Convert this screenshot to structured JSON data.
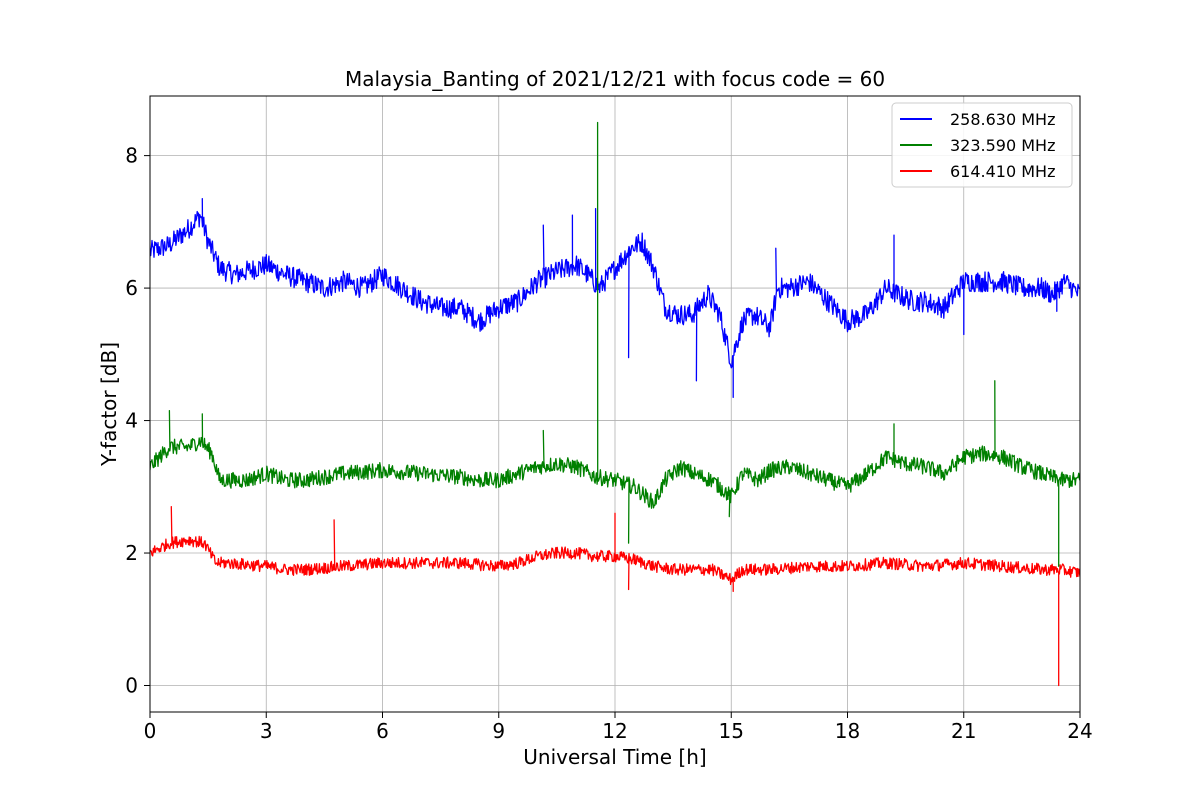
{
  "chart_data": {
    "type": "line",
    "title": "Malaysia_Banting of 2021/12/21 with focus code = 60",
    "xlabel": "Universal Time [h]",
    "ylabel": "Y-factor [dB]",
    "xlim": [
      0,
      24
    ],
    "ylim": [
      -0.4,
      8.9
    ],
    "xticks": [
      0,
      3,
      6,
      9,
      12,
      15,
      18,
      21,
      24
    ],
    "xtick_labels": [
      "0",
      "3",
      "6",
      "9",
      "12",
      "15",
      "18",
      "21",
      "24"
    ],
    "yticks": [
      0,
      2,
      4,
      6,
      8
    ],
    "ytick_labels": [
      "0",
      "2",
      "4",
      "6",
      "8"
    ],
    "grid": true,
    "legend_position": "top-right",
    "series": [
      {
        "name": "258.630 MHz",
        "color": "#0000ff",
        "noise": 0.16,
        "x": [
          0,
          0.5,
          1.0,
          1.3,
          1.5,
          1.8,
          2.2,
          3.0,
          3.5,
          4.0,
          4.5,
          5.0,
          5.5,
          6.0,
          6.5,
          7.0,
          7.5,
          8.0,
          8.5,
          9.0,
          9.5,
          10.0,
          10.5,
          11.0,
          11.3,
          11.6,
          12.0,
          12.4,
          12.7,
          13.0,
          13.3,
          13.6,
          14.0,
          14.4,
          14.7,
          15.0,
          15.3,
          15.6,
          16.0,
          16.2,
          16.5,
          17.0,
          17.5,
          18.0,
          18.5,
          19.0,
          19.3,
          19.7,
          20.0,
          20.5,
          21.0,
          21.5,
          22.0,
          22.5,
          23.0,
          23.3,
          23.6,
          24.0
        ],
        "y": [
          6.55,
          6.65,
          6.9,
          7.1,
          6.7,
          6.3,
          6.2,
          6.35,
          6.2,
          6.1,
          6.0,
          6.1,
          6.0,
          6.2,
          6.0,
          5.8,
          5.7,
          5.7,
          5.5,
          5.7,
          5.8,
          6.1,
          6.25,
          6.35,
          6.2,
          6.0,
          6.3,
          6.6,
          6.7,
          6.3,
          5.7,
          5.6,
          5.6,
          5.9,
          5.6,
          4.9,
          5.5,
          5.6,
          5.4,
          6.0,
          6.0,
          6.1,
          5.8,
          5.5,
          5.6,
          6.0,
          5.9,
          5.8,
          5.8,
          5.7,
          6.1,
          6.1,
          6.1,
          6.0,
          6.0,
          5.9,
          6.1,
          5.9
        ],
        "spikes": [
          [
            1.35,
            7.35
          ],
          [
            10.15,
            6.95
          ],
          [
            10.9,
            7.1
          ],
          [
            11.5,
            7.2
          ],
          [
            12.35,
            4.95
          ],
          [
            14.1,
            4.6
          ],
          [
            15.05,
            4.35
          ],
          [
            16.15,
            6.6
          ],
          [
            19.2,
            6.8
          ],
          [
            21.0,
            5.3
          ],
          [
            23.4,
            5.65
          ]
        ]
      },
      {
        "name": "323.590 MHz",
        "color": "#008000",
        "noise": 0.12,
        "x": [
          0,
          0.5,
          1.0,
          1.3,
          1.6,
          1.8,
          2.5,
          3.0,
          3.5,
          4.0,
          5.0,
          6.0,
          7.0,
          8.0,
          8.5,
          9.0,
          9.5,
          10.0,
          10.5,
          11.0,
          11.5,
          12.0,
          12.5,
          13.0,
          13.3,
          13.7,
          14.0,
          14.5,
          15.0,
          15.3,
          15.7,
          16.0,
          16.5,
          17.0,
          17.5,
          18.0,
          18.5,
          19.0,
          19.5,
          20.0,
          20.5,
          21.0,
          21.5,
          22.0,
          22.5,
          23.0,
          23.5,
          24.0
        ],
        "y": [
          3.3,
          3.6,
          3.6,
          3.7,
          3.5,
          3.1,
          3.1,
          3.2,
          3.1,
          3.1,
          3.2,
          3.25,
          3.2,
          3.15,
          3.1,
          3.1,
          3.2,
          3.3,
          3.35,
          3.3,
          3.15,
          3.1,
          3.0,
          2.75,
          3.1,
          3.3,
          3.2,
          3.1,
          2.85,
          3.2,
          3.1,
          3.25,
          3.3,
          3.2,
          3.1,
          3.0,
          3.2,
          3.45,
          3.35,
          3.3,
          3.2,
          3.45,
          3.5,
          3.45,
          3.3,
          3.2,
          3.1,
          3.1
        ],
        "spikes": [
          [
            0.5,
            4.15
          ],
          [
            1.35,
            4.1
          ],
          [
            10.15,
            3.85
          ],
          [
            11.55,
            8.5
          ],
          [
            12.35,
            2.15
          ],
          [
            14.95,
            2.55
          ],
          [
            19.2,
            3.95
          ],
          [
            21.8,
            4.6
          ],
          [
            23.45,
            1.8
          ]
        ]
      },
      {
        "name": "614.410 MHz",
        "color": "#ff0000",
        "noise": 0.09,
        "x": [
          0,
          0.5,
          1.0,
          1.4,
          1.7,
          2.0,
          3.0,
          3.5,
          4.0,
          5.0,
          6.0,
          7.0,
          8.0,
          9.0,
          9.5,
          10.0,
          10.5,
          11.0,
          11.5,
          12.0,
          12.5,
          13.0,
          13.5,
          14.0,
          14.5,
          15.0,
          15.3,
          16.0,
          17.0,
          18.0,
          19.0,
          20.0,
          21.0,
          22.0,
          23.0,
          23.5,
          24.0
        ],
        "y": [
          2.0,
          2.15,
          2.2,
          2.15,
          1.85,
          1.85,
          1.8,
          1.75,
          1.75,
          1.8,
          1.85,
          1.85,
          1.85,
          1.8,
          1.85,
          1.95,
          2.0,
          2.0,
          1.95,
          1.95,
          1.9,
          1.8,
          1.75,
          1.75,
          1.75,
          1.6,
          1.75,
          1.75,
          1.8,
          1.8,
          1.85,
          1.8,
          1.85,
          1.8,
          1.75,
          1.75,
          1.7
        ],
        "spikes": [
          [
            0.55,
            2.7
          ],
          [
            4.75,
            2.5
          ],
          [
            12.0,
            2.6
          ],
          [
            12.35,
            1.45
          ],
          [
            15.05,
            1.42
          ],
          [
            23.45,
            0.0
          ]
        ]
      }
    ]
  }
}
